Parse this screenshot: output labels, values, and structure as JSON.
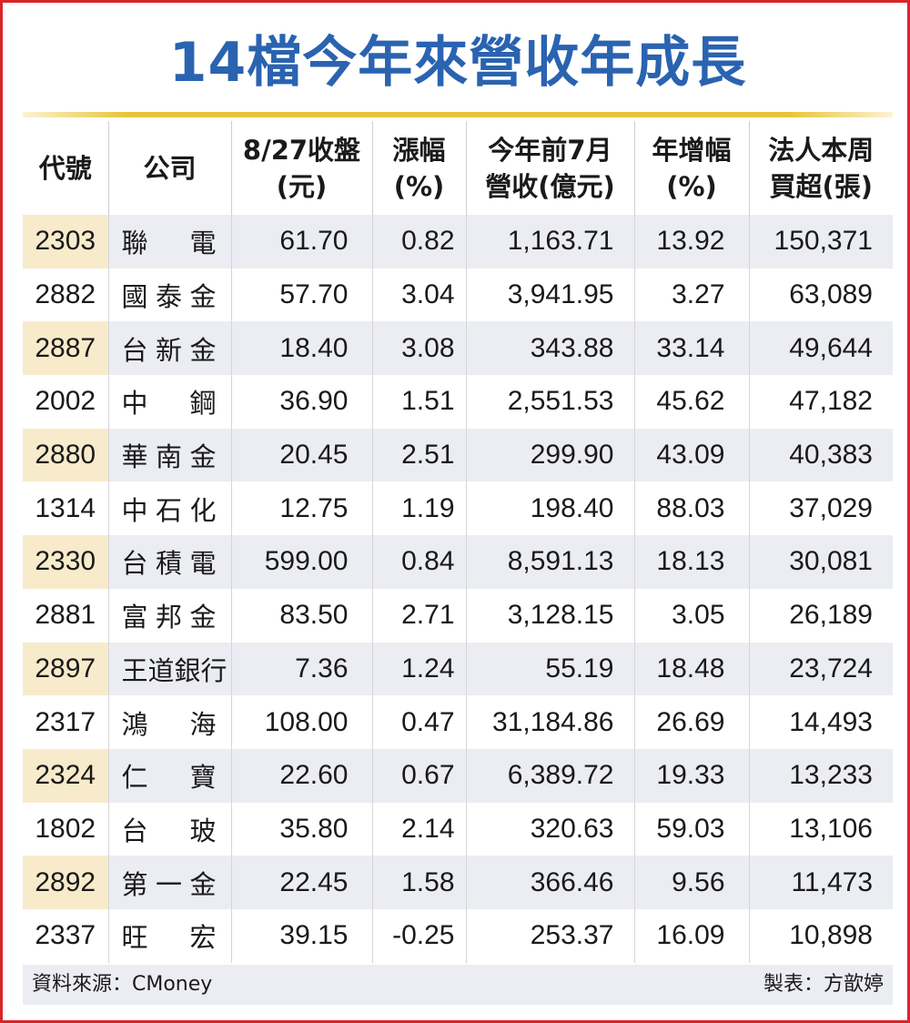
{
  "title": "14檔今年來營收年成長",
  "headers": [
    [
      "代號"
    ],
    [
      "公司"
    ],
    [
      "8/27收盤",
      "(元)"
    ],
    [
      "漲幅",
      "(%)"
    ],
    [
      "今年前7月",
      "營收(億元)"
    ],
    [
      "年增幅",
      "(%)"
    ],
    [
      "法人本周",
      "買超(張)"
    ]
  ],
  "rows": [
    {
      "code": "2303",
      "name": "聯　電",
      "close": "61.70",
      "change": "0.82",
      "revenue": "1,163.71",
      "yoy": "13.92",
      "net_buy": "150,371"
    },
    {
      "code": "2882",
      "name": "國泰金",
      "close": "57.70",
      "change": "3.04",
      "revenue": "3,941.95",
      "yoy": "3.27",
      "net_buy": "63,089"
    },
    {
      "code": "2887",
      "name": "台新金",
      "close": "18.40",
      "change": "3.08",
      "revenue": "343.88",
      "yoy": "33.14",
      "net_buy": "49,644"
    },
    {
      "code": "2002",
      "name": "中　鋼",
      "close": "36.90",
      "change": "1.51",
      "revenue": "2,551.53",
      "yoy": "45.62",
      "net_buy": "47,182"
    },
    {
      "code": "2880",
      "name": "華南金",
      "close": "20.45",
      "change": "2.51",
      "revenue": "299.90",
      "yoy": "43.09",
      "net_buy": "40,383"
    },
    {
      "code": "1314",
      "name": "中石化",
      "close": "12.75",
      "change": "1.19",
      "revenue": "198.40",
      "yoy": "88.03",
      "net_buy": "37,029"
    },
    {
      "code": "2330",
      "name": "台積電",
      "close": "599.00",
      "change": "0.84",
      "revenue": "8,591.13",
      "yoy": "18.13",
      "net_buy": "30,081"
    },
    {
      "code": "2881",
      "name": "富邦金",
      "close": "83.50",
      "change": "2.71",
      "revenue": "3,128.15",
      "yoy": "3.05",
      "net_buy": "26,189"
    },
    {
      "code": "2897",
      "name": "王道銀行",
      "close": "7.36",
      "change": "1.24",
      "revenue": "55.19",
      "yoy": "18.48",
      "net_buy": "23,724"
    },
    {
      "code": "2317",
      "name": "鴻　海",
      "close": "108.00",
      "change": "0.47",
      "revenue": "31,184.86",
      "yoy": "26.69",
      "net_buy": "14,493"
    },
    {
      "code": "2324",
      "name": "仁　寶",
      "close": "22.60",
      "change": "0.67",
      "revenue": "6,389.72",
      "yoy": "19.33",
      "net_buy": "13,233"
    },
    {
      "code": "1802",
      "name": "台　玻",
      "close": "35.80",
      "change": "2.14",
      "revenue": "320.63",
      "yoy": "59.03",
      "net_buy": "13,106"
    },
    {
      "code": "2892",
      "name": "第一金",
      "close": "22.45",
      "change": "1.58",
      "revenue": "366.46",
      "yoy": "9.56",
      "net_buy": "11,473"
    },
    {
      "code": "2337",
      "name": "旺　宏",
      "close": "39.15",
      "change": "-0.25",
      "revenue": "253.37",
      "yoy": "16.09",
      "net_buy": "10,898"
    }
  ],
  "footer": {
    "source": "資料來源：CMoney",
    "maker": "製表：方歆婷"
  },
  "colors": {
    "frame_border": "#d9242b",
    "title": "#2a63b0",
    "gold_rule": "#e7c437",
    "row_shade": "#ecedf3",
    "code_shade": "#f8ebcb"
  }
}
